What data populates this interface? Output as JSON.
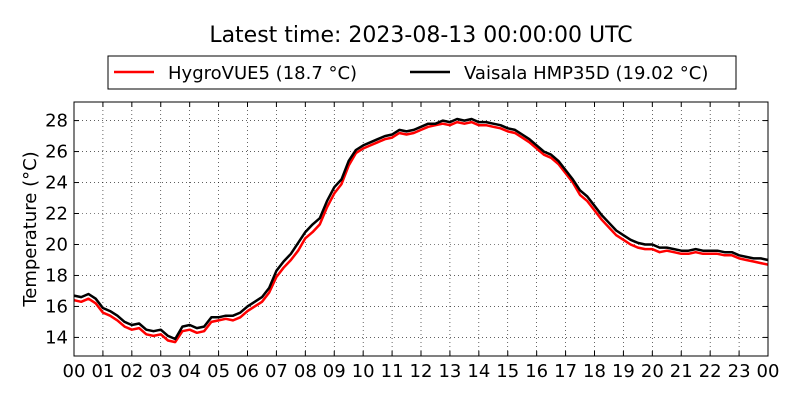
{
  "chart_data": {
    "type": "line",
    "title": "Latest time: 2023-08-13 00:00:00 UTC",
    "ylabel": "Temperature (°C)",
    "xlabel": "",
    "xlim": [
      0,
      24
    ],
    "ylim": [
      12.8,
      29.2
    ],
    "x_ticks": [
      "00",
      "01",
      "02",
      "03",
      "04",
      "05",
      "06",
      "07",
      "08",
      "09",
      "10",
      "11",
      "12",
      "13",
      "14",
      "15",
      "16",
      "17",
      "18",
      "19",
      "20",
      "21",
      "22",
      "23",
      "00"
    ],
    "y_ticks": [
      14,
      16,
      18,
      20,
      22,
      24,
      26,
      28
    ],
    "grid": true,
    "legend_position": "top-center",
    "series": [
      {
        "name": "HygroVUE5 (18.7 °C)",
        "color": "#ff0000",
        "x": [
          0,
          0.25,
          0.5,
          0.75,
          1,
          1.25,
          1.5,
          1.75,
          2,
          2.25,
          2.5,
          2.75,
          3,
          3.25,
          3.5,
          3.75,
          4,
          4.25,
          4.5,
          4.75,
          5,
          5.25,
          5.5,
          5.75,
          6,
          6.25,
          6.5,
          6.75,
          7,
          7.25,
          7.5,
          7.75,
          8,
          8.25,
          8.5,
          8.75,
          9,
          9.25,
          9.5,
          9.75,
          10,
          10.25,
          10.5,
          10.75,
          11,
          11.25,
          11.5,
          11.75,
          12,
          12.25,
          12.5,
          12.75,
          13,
          13.25,
          13.5,
          13.75,
          14,
          14.25,
          14.5,
          14.75,
          15,
          15.25,
          15.5,
          15.75,
          16,
          16.25,
          16.5,
          16.75,
          17,
          17.25,
          17.5,
          17.75,
          18,
          18.25,
          18.5,
          18.75,
          19,
          19.25,
          19.5,
          19.75,
          20,
          20.25,
          20.5,
          20.75,
          21,
          21.25,
          21.5,
          21.75,
          22,
          22.25,
          22.5,
          22.75,
          23,
          23.25,
          23.5,
          23.75,
          24
        ],
        "y": [
          16.4,
          16.3,
          16.5,
          16.2,
          15.6,
          15.4,
          15.1,
          14.7,
          14.5,
          14.6,
          14.2,
          14.1,
          14.2,
          13.8,
          13.7,
          14.4,
          14.5,
          14.3,
          14.4,
          15.0,
          15.1,
          15.2,
          15.1,
          15.3,
          15.7,
          16.0,
          16.3,
          16.9,
          17.9,
          18.5,
          19.0,
          19.6,
          20.4,
          20.8,
          21.3,
          22.4,
          23.3,
          23.9,
          25.1,
          25.9,
          26.2,
          26.4,
          26.6,
          26.8,
          26.9,
          27.2,
          27.1,
          27.2,
          27.4,
          27.6,
          27.7,
          27.8,
          27.7,
          27.9,
          27.8,
          27.9,
          27.7,
          27.7,
          27.6,
          27.5,
          27.3,
          27.2,
          26.9,
          26.6,
          26.2,
          25.8,
          25.6,
          25.2,
          24.6,
          24.0,
          23.2,
          22.8,
          22.2,
          21.6,
          21.1,
          20.6,
          20.3,
          20.0,
          19.8,
          19.7,
          19.7,
          19.5,
          19.6,
          19.5,
          19.4,
          19.4,
          19.5,
          19.4,
          19.4,
          19.4,
          19.3,
          19.3,
          19.1,
          19.0,
          18.9,
          18.8,
          18.7
        ]
      },
      {
        "name": "Vaisala HMP35D (19.02 °C)",
        "color": "#000000",
        "x": [
          0,
          0.25,
          0.5,
          0.75,
          1,
          1.25,
          1.5,
          1.75,
          2,
          2.25,
          2.5,
          2.75,
          3,
          3.25,
          3.5,
          3.75,
          4,
          4.25,
          4.5,
          4.75,
          5,
          5.25,
          5.5,
          5.75,
          6,
          6.25,
          6.5,
          6.75,
          7,
          7.25,
          7.5,
          7.75,
          8,
          8.25,
          8.5,
          8.75,
          9,
          9.25,
          9.5,
          9.75,
          10,
          10.25,
          10.5,
          10.75,
          11,
          11.25,
          11.5,
          11.75,
          12,
          12.25,
          12.5,
          12.75,
          13,
          13.25,
          13.5,
          13.75,
          14,
          14.25,
          14.5,
          14.75,
          15,
          15.25,
          15.5,
          15.75,
          16,
          16.25,
          16.5,
          16.75,
          17,
          17.25,
          17.5,
          17.75,
          18,
          18.25,
          18.5,
          18.75,
          19,
          19.25,
          19.5,
          19.75,
          20,
          20.25,
          20.5,
          20.75,
          21,
          21.25,
          21.5,
          21.75,
          22,
          22.25,
          22.5,
          22.75,
          23,
          23.25,
          23.5,
          23.75,
          24
        ],
        "y": [
          16.7,
          16.6,
          16.8,
          16.5,
          15.9,
          15.7,
          15.4,
          15.0,
          14.8,
          14.9,
          14.5,
          14.4,
          14.5,
          14.1,
          13.9,
          14.7,
          14.8,
          14.6,
          14.7,
          15.3,
          15.3,
          15.4,
          15.4,
          15.6,
          16.0,
          16.3,
          16.6,
          17.2,
          18.3,
          18.9,
          19.4,
          20.1,
          20.8,
          21.3,
          21.7,
          22.8,
          23.7,
          24.2,
          25.4,
          26.1,
          26.4,
          26.6,
          26.8,
          27.0,
          27.1,
          27.4,
          27.3,
          27.4,
          27.6,
          27.8,
          27.8,
          28.0,
          27.9,
          28.1,
          28.0,
          28.1,
          27.9,
          27.9,
          27.8,
          27.7,
          27.5,
          27.4,
          27.1,
          26.8,
          26.4,
          26.0,
          25.8,
          25.4,
          24.8,
          24.2,
          23.5,
          23.1,
          22.5,
          21.9,
          21.4,
          20.9,
          20.6,
          20.3,
          20.1,
          20.0,
          20.0,
          19.8,
          19.8,
          19.7,
          19.6,
          19.6,
          19.7,
          19.6,
          19.6,
          19.6,
          19.5,
          19.5,
          19.3,
          19.2,
          19.1,
          19.1,
          19.0
        ]
      }
    ]
  }
}
